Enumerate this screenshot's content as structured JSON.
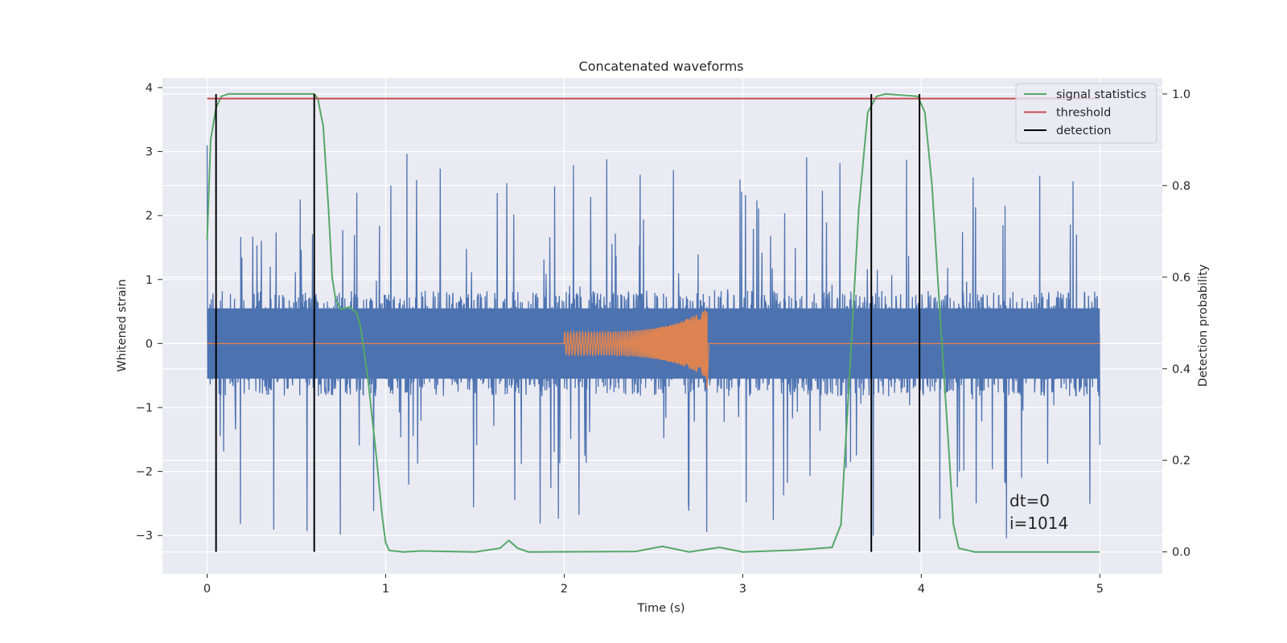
{
  "chart_data": {
    "type": "line",
    "title": "Concatenated waveforms",
    "xlabel": "Time (s)",
    "ylabel": "Whitened strain",
    "y2label": "Detection probability",
    "xlim": [
      -0.25,
      5.35
    ],
    "ylim": [
      -3.6,
      4.15
    ],
    "y2lim": [
      -0.048,
      1.035
    ],
    "x_ticks": [
      0,
      1,
      2,
      3,
      4,
      5
    ],
    "y_ticks": [
      -3,
      -2,
      -1,
      0,
      1,
      2,
      3,
      4
    ],
    "y2_ticks": [
      0.0,
      0.2,
      0.4,
      0.6,
      0.8,
      1.0
    ],
    "y2_tick_labels": [
      "0.0",
      "0.2",
      "0.4",
      "0.6",
      "0.8",
      "1.0"
    ],
    "grid": true,
    "legend_position": "top-right",
    "noise": {
      "x_range": [
        0,
        5
      ],
      "typical_amplitude": 0.55,
      "max_peak": 3.1,
      "min_peak": -3.2,
      "color": "#4c72b0"
    },
    "injected_signal": {
      "x_range": [
        2.0,
        2.8
      ],
      "peak_amplitude": 0.55,
      "min_amplitude": -0.7,
      "color": "#dd8452"
    },
    "series": [
      {
        "name": "signal statistics",
        "axis": "right",
        "color": "#55a868",
        "x": [
          0,
          0.02,
          0.05,
          0.08,
          0.12,
          0.5,
          0.6,
          0.62,
          0.65,
          0.68,
          0.7,
          0.72,
          0.75,
          0.8,
          0.84,
          0.86,
          0.9,
          0.95,
          0.98,
          1.0,
          1.02,
          1.1,
          1.2,
          1.5,
          1.64,
          1.69,
          1.74,
          1.8,
          2.4,
          2.55,
          2.7,
          2.87,
          3.0,
          3.3,
          3.5,
          3.55,
          3.6,
          3.65,
          3.7,
          3.75,
          3.8,
          3.98,
          4.02,
          4.06,
          4.1,
          4.15,
          4.18,
          4.21,
          4.3,
          5.0
        ],
        "y": [
          0.68,
          0.9,
          0.97,
          0.995,
          1.0,
          1.0,
          1.0,
          0.99,
          0.93,
          0.75,
          0.6,
          0.55,
          0.53,
          0.535,
          0.52,
          0.49,
          0.38,
          0.2,
          0.08,
          0.02,
          0.003,
          0.0,
          0.002,
          0.0,
          0.008,
          0.025,
          0.008,
          0.0,
          0.001,
          0.012,
          0.0,
          0.01,
          0.0,
          0.004,
          0.01,
          0.06,
          0.4,
          0.75,
          0.96,
          0.995,
          1.0,
          0.995,
          0.96,
          0.8,
          0.55,
          0.25,
          0.06,
          0.008,
          0.0,
          0.0
        ]
      },
      {
        "name": "threshold",
        "axis": "right",
        "color": "#c44e52",
        "x": [
          0,
          5
        ],
        "y": [
          0.99,
          0.99
        ]
      },
      {
        "name": "detection",
        "axis": "right",
        "color": "#000000",
        "type": "vlines",
        "x": [
          0.05,
          0.6,
          3.72,
          3.99
        ],
        "ymin": 0.0,
        "ymax": 1.0
      }
    ],
    "annotations": [
      "dt=0",
      "i=1014"
    ]
  }
}
